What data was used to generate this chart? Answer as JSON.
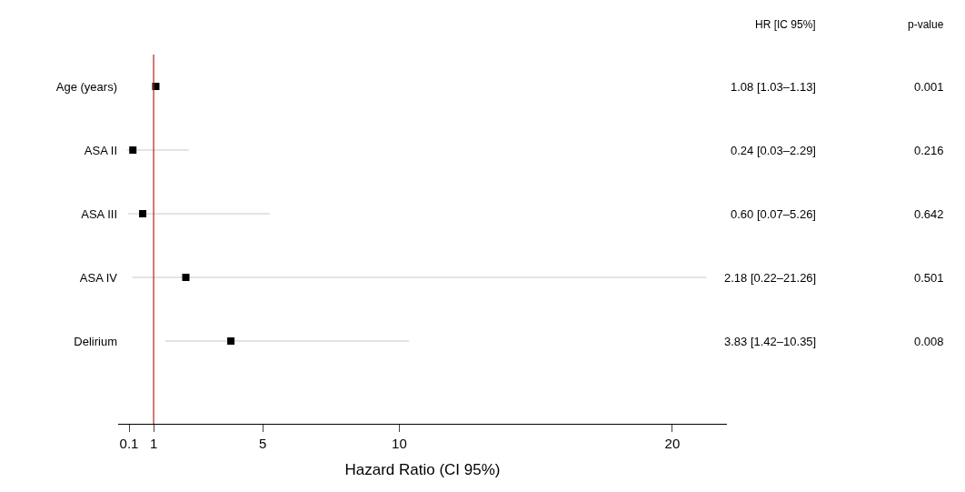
{
  "chart_data": {
    "type": "scatter",
    "orientation": "horizontal",
    "xlabel": "Hazard Ratio (CI 95%)",
    "categories": [
      "Age (years)",
      "ASA II",
      "ASA III",
      "ASA IV",
      "Delirium"
    ],
    "values": [
      1.08,
      0.24,
      0.6,
      2.18,
      3.83
    ],
    "errors": [
      [
        1.03,
        1.13
      ],
      [
        0.03,
        2.29
      ],
      [
        0.07,
        5.26
      ],
      [
        0.22,
        21.26
      ],
      [
        1.42,
        10.35
      ]
    ],
    "value_labels": [
      "1.08 [1.03–1.13]",
      "0.24 [0.03–2.29]",
      "0.60 [0.07–5.26]",
      "2.18 [0.22–21.26]",
      "3.83 [1.42–10.35]"
    ],
    "annotations": [
      "HR [IC 95%]",
      "p-value",
      "0.001",
      "0.216",
      "0.642",
      "0.501",
      "0.008"
    ],
    "xlim": [
      -0.3,
      22
    ],
    "xticks": [
      0.1,
      1,
      5,
      10,
      20
    ],
    "ref_lines": [
      {
        "axis": "x",
        "value": 1,
        "color": "#b22222"
      }
    ],
    "color": "#000000",
    "marker": "square"
  }
}
